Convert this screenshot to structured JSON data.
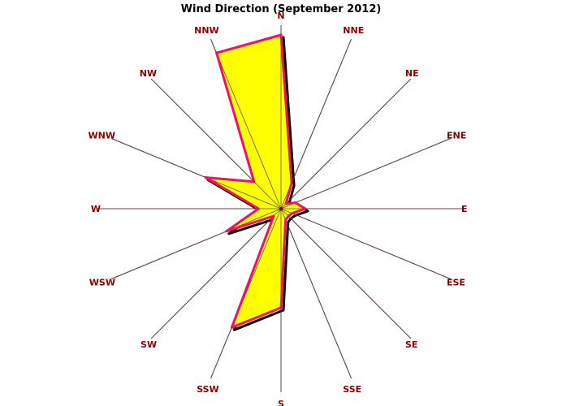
{
  "colors": {
    "background": "#ffffff",
    "axis": "#800000",
    "label": "#8b0000",
    "fill": "#ffff00",
    "outline": "#ee1166",
    "shadow": "#000000",
    "title": "#000000"
  },
  "chart_data": {
    "type": "radar",
    "title": "Wind Direction (September 2012)",
    "directions": [
      "N",
      "NNE",
      "NE",
      "ENE",
      "E",
      "ESE",
      "SE",
      "SSE",
      "S",
      "SSW",
      "SW",
      "WSW",
      "W",
      "WNW",
      "NW",
      "NNW"
    ],
    "values": [
      1.0,
      0.16,
      0.04,
      0.09,
      0.14,
      0.07,
      0.06,
      0.07,
      0.57,
      0.74,
      0.06,
      0.34,
      0.13,
      0.47,
      0.22,
      0.97
    ],
    "rmax": 1.0,
    "grid": false,
    "legend": "none"
  }
}
